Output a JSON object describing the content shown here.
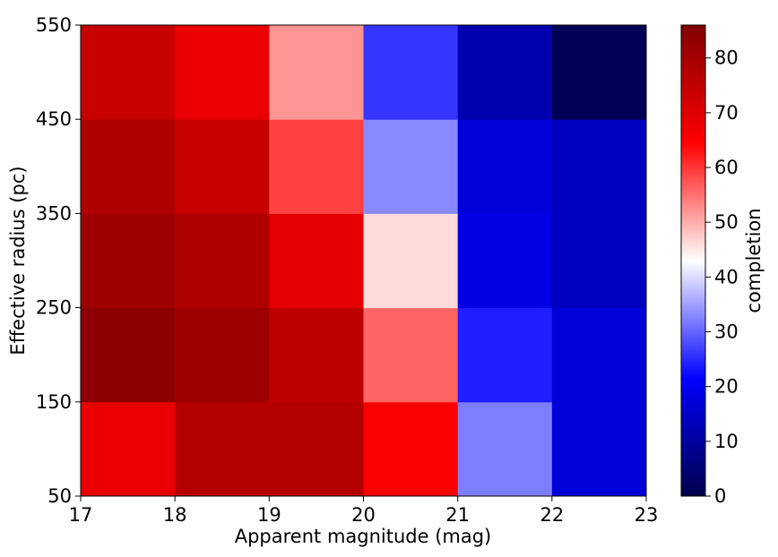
{
  "chart_data": {
    "type": "heatmap",
    "xlabel": "Apparent magnitude (mag)",
    "ylabel": "Effective radius (pc)",
    "colorbar_label": "completion",
    "x_edges": [
      17,
      18,
      19,
      20,
      21,
      22,
      23
    ],
    "y_edges": [
      50,
      150,
      250,
      350,
      450,
      550
    ],
    "x_ticks": [
      "17",
      "18",
      "19",
      "20",
      "21",
      "22",
      "23"
    ],
    "y_ticks": [
      "50",
      "150",
      "250",
      "350",
      "450",
      "550"
    ],
    "colorbar_ticks": [
      "0",
      "10",
      "20",
      "30",
      "40",
      "50",
      "60",
      "70",
      "80"
    ],
    "colormap": "seismic",
    "vmin": 0,
    "vmax": 86,
    "values": [
      [
        68,
        77,
        77,
        65,
        32,
        17
      ],
      [
        84,
        81,
        76,
        56,
        24,
        17
      ],
      [
        81,
        78,
        69,
        46,
        18,
        14
      ],
      [
        78,
        74,
        59,
        33,
        17,
        14
      ],
      [
        74,
        68,
        52,
        26,
        12,
        1
      ]
    ]
  }
}
